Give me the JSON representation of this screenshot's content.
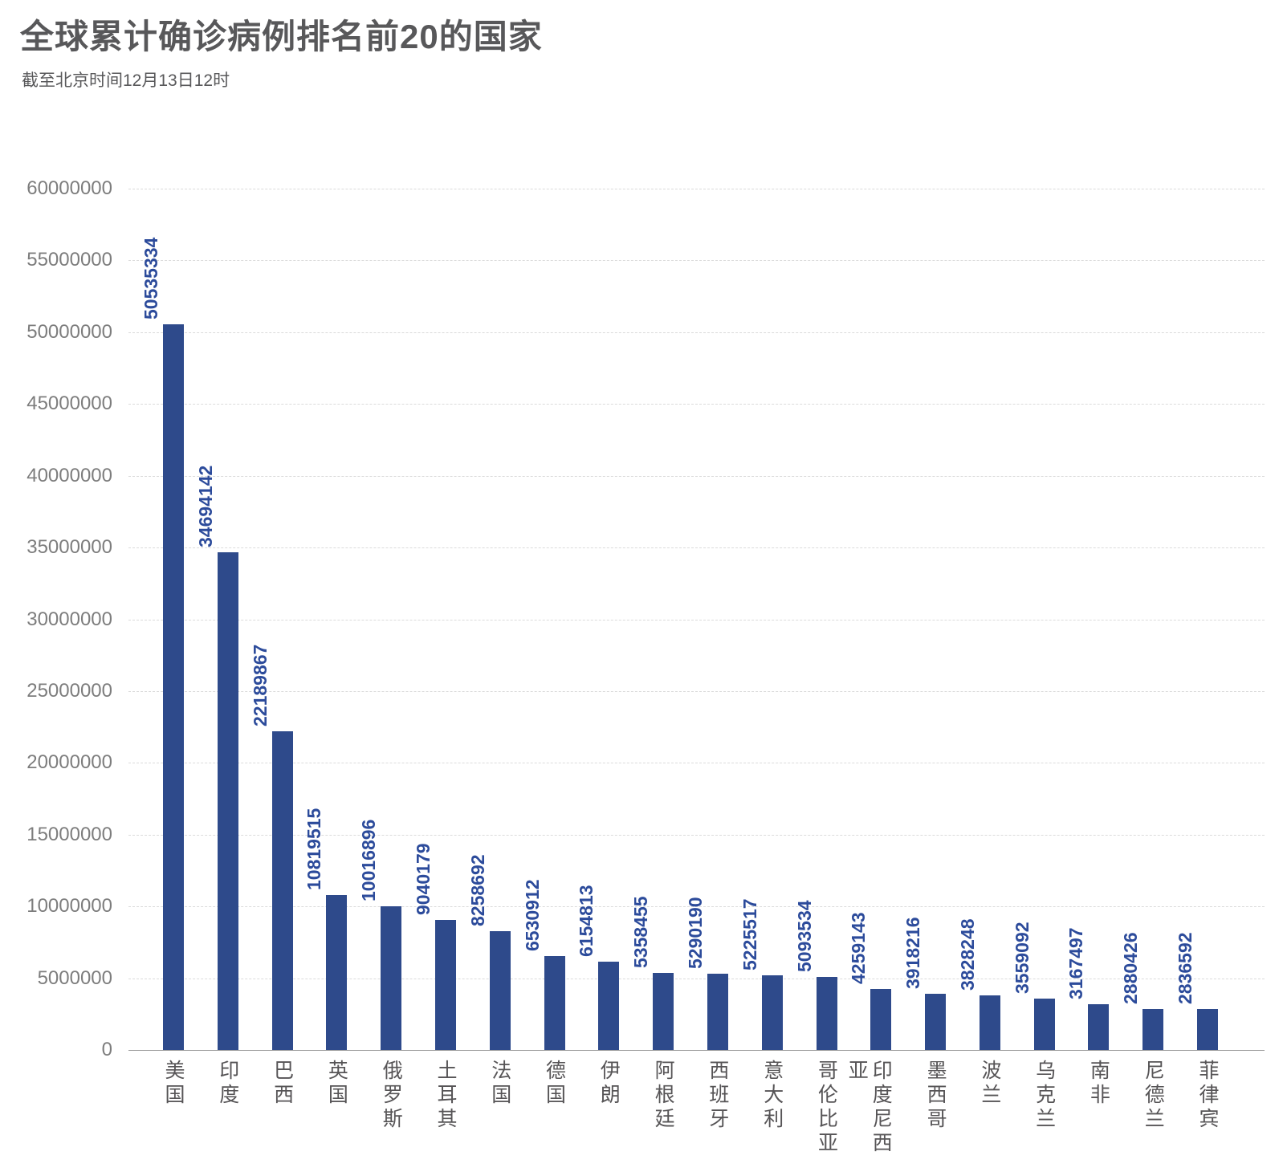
{
  "chart_data": {
    "type": "bar",
    "title": "全球累计确诊病例排名前20的国家",
    "subtitle": "截至北京时间12月13日12时",
    "categories": [
      "美国",
      "印度",
      "巴西",
      "英国",
      "俄罗斯",
      "土耳其",
      "法国",
      "德国",
      "伊朗",
      "阿根廷",
      "西班牙",
      "意大利",
      "哥伦比亚",
      "印度尼西亚",
      "墨西哥",
      "波兰",
      "乌克兰",
      "南非",
      "尼德兰",
      "菲律宾"
    ],
    "values": [
      50535334,
      34694142,
      22189867,
      10819515,
      10016896,
      9040179,
      8258692,
      6530912,
      6154813,
      5358455,
      5290190,
      5225517,
      5093534,
      4259143,
      3918216,
      3828248,
      3559092,
      3167497,
      2880426,
      2836592
    ],
    "value_labels_shown": true,
    "xlabel": "",
    "ylabel": "",
    "ylim": [
      0,
      60000000
    ],
    "y_ticks": [
      0,
      5000000,
      10000000,
      15000000,
      20000000,
      25000000,
      30000000,
      35000000,
      40000000,
      45000000,
      50000000,
      55000000,
      60000000
    ],
    "grid": true,
    "gridline_style": "dashed",
    "legend": null,
    "colors": {
      "bar": "#2E4A8B",
      "value_label": "#2C4B9B",
      "title": "#58585A",
      "axis_text": "#7D7D7D",
      "category_text": "#565456",
      "gridline": "#DBDBDB",
      "axis_line": "#9B9B9B",
      "background": "#FFFFFF"
    }
  }
}
